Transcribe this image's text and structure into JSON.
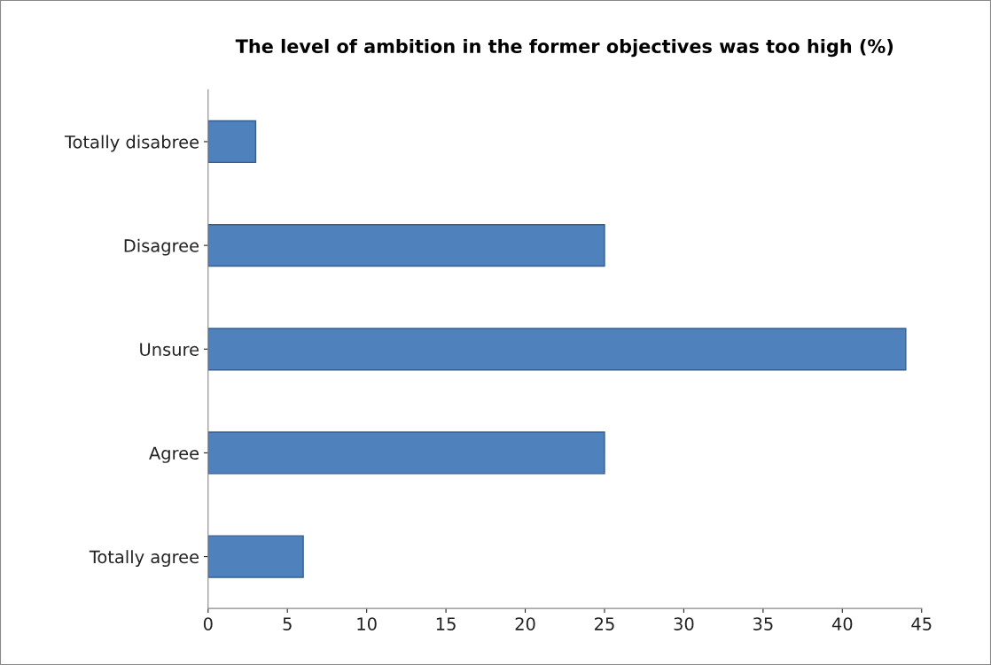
{
  "chart_data": {
    "type": "bar",
    "orientation": "horizontal",
    "title": "The level of ambition in the former objectives was too high (%)",
    "categories": [
      "Totally disabree",
      "Disagree",
      "Unsure",
      "Agree",
      "Totally agree"
    ],
    "values": [
      3,
      25,
      44,
      25,
      6
    ],
    "color": "#4f81bd",
    "xlim": [
      0,
      45
    ],
    "xticks": [
      0,
      5,
      10,
      15,
      20,
      25,
      30,
      35,
      40,
      45
    ],
    "grid": false,
    "legend": false
  }
}
